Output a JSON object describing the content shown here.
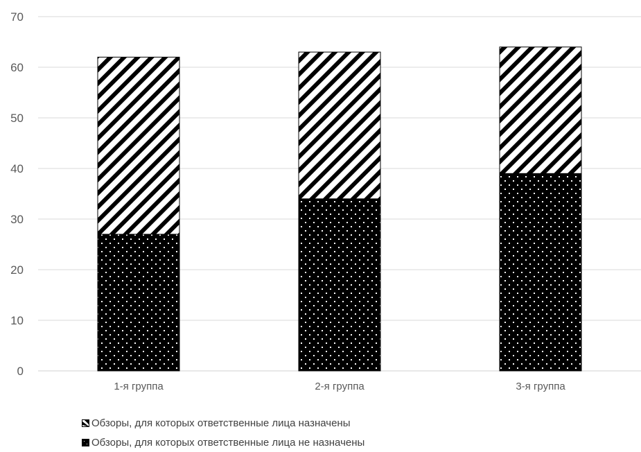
{
  "chart_data": {
    "type": "bar",
    "stacked": true,
    "categories": [
      "1-я группа",
      "2-я группа",
      "3-я группа"
    ],
    "series": [
      {
        "name": "Обзоры, для которых ответственные лица не назначены",
        "values": [
          27,
          34,
          39
        ],
        "pattern": "dots-on-black",
        "color": "#000000"
      },
      {
        "name": "Обзоры, для которых ответственные лица назначены",
        "values": [
          35,
          29,
          25
        ],
        "pattern": "diagonal-stripes",
        "color": "#000000"
      }
    ],
    "ylim": [
      0,
      70
    ],
    "yticks": [
      0,
      10,
      20,
      30,
      40,
      50,
      60,
      70
    ],
    "grid": true,
    "legend_position": "bottom-left"
  }
}
